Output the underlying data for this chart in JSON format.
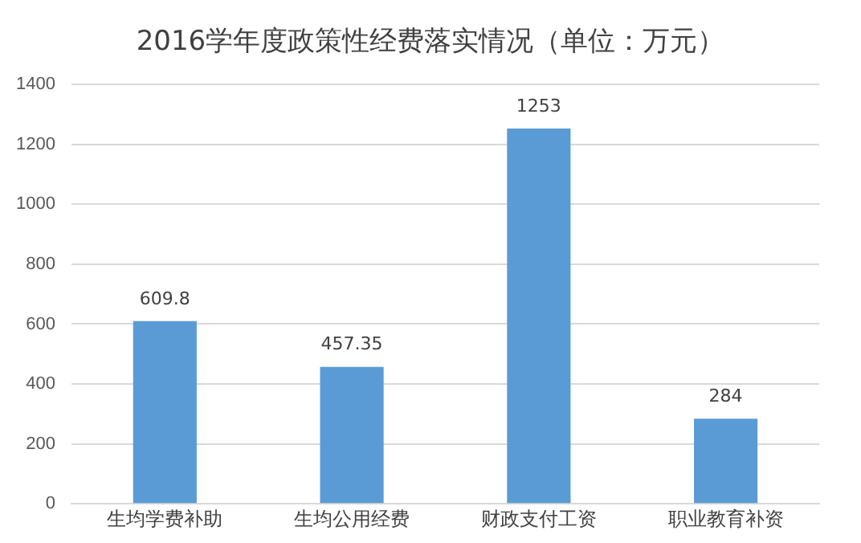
{
  "chart_data": {
    "type": "bar",
    "title": "2016学年度政策性经费落实情况（单位：万元）",
    "categories": [
      "生均学费补助",
      "生均公用经费",
      "财政支付工资",
      "职业教育补资"
    ],
    "values": [
      609.8,
      457.35,
      1253,
      284
    ],
    "color": "#5b9bd5",
    "ylim": [
      0,
      1400
    ],
    "yticks": [
      0,
      200,
      400,
      600,
      800,
      1000,
      1200,
      1400
    ],
    "grid": "y",
    "data_labels": true
  }
}
